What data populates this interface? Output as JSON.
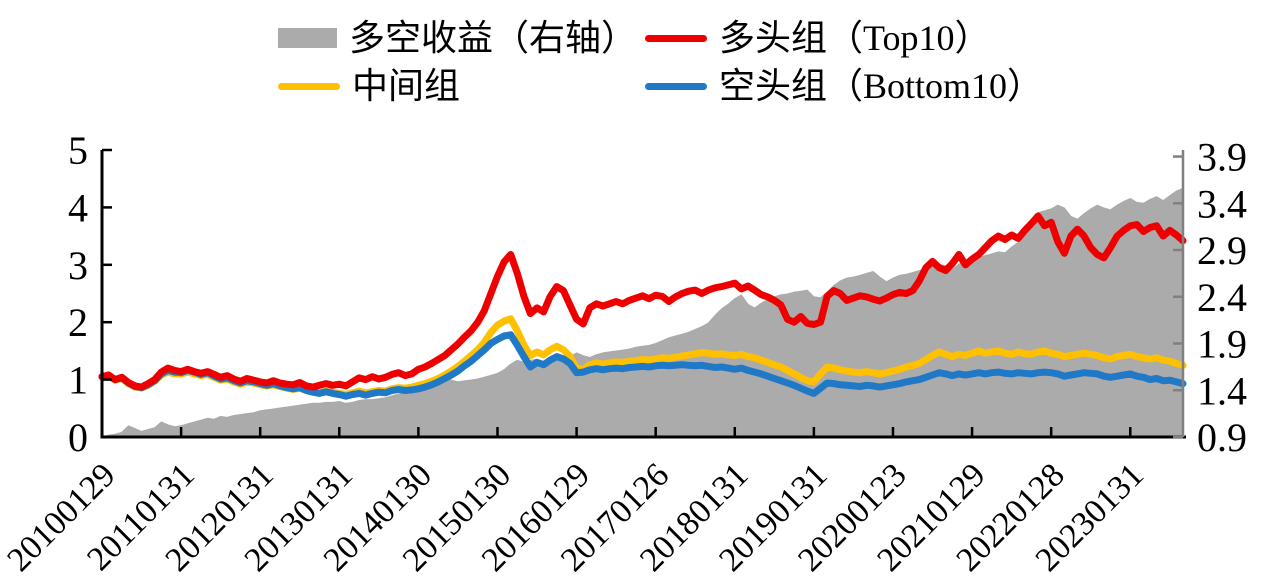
{
  "figure": {
    "background": "#FFFFFF"
  },
  "legend": {
    "items": [
      {
        "label": "多空收益（右轴）",
        "swatch": "area",
        "color": "#ABABAB"
      },
      {
        "label": "多头组（Top10）",
        "swatch": "line",
        "color": "#EE0000"
      },
      {
        "label": "中间组",
        "swatch": "line",
        "color": "#FFC000"
      },
      {
        "label": "空头组（Bottom10）",
        "swatch": "line",
        "color": "#2079C7"
      }
    ]
  },
  "chart_data": {
    "type": "area+line",
    "title": "",
    "grid": "off",
    "legend_position": "top",
    "x_tick_labels": [
      "20100129",
      "20110131",
      "20120131",
      "20130131",
      "20140130",
      "20150130",
      "20160129",
      "20170126",
      "20180131",
      "20190131",
      "20200123",
      "20210129",
      "20220128",
      "20230131"
    ],
    "points_per_tick_interval": 12,
    "y_left": {
      "ticks": [
        0,
        1,
        2,
        3,
        4,
        5
      ],
      "range": [
        0,
        5
      ],
      "color": "#000000"
    },
    "y_right": {
      "ticks": [
        0.9,
        1.4,
        1.9,
        2.4,
        2.9,
        3.4,
        3.9
      ],
      "range": [
        0.9,
        3.97
      ],
      "color": "#808080"
    },
    "series": [
      {
        "name": "多空收益（右轴）",
        "axis": "right",
        "type": "area",
        "color": "#ABABAB",
        "values": [
          0.9,
          0.92,
          0.93,
          0.95,
          1.02,
          0.99,
          0.96,
          0.98,
          1.0,
          1.06,
          1.03,
          1.01,
          1.02,
          1.04,
          1.06,
          1.08,
          1.1,
          1.09,
          1.12,
          1.11,
          1.13,
          1.14,
          1.15,
          1.16,
          1.18,
          1.19,
          1.2,
          1.21,
          1.22,
          1.23,
          1.24,
          1.25,
          1.26,
          1.26,
          1.27,
          1.27,
          1.28,
          1.26,
          1.27,
          1.29,
          1.3,
          1.3,
          1.31,
          1.32,
          1.34,
          1.36,
          1.38,
          1.4,
          1.42,
          1.45,
          1.48,
          1.5,
          1.53,
          1.51,
          1.49,
          1.5,
          1.51,
          1.52,
          1.54,
          1.56,
          1.58,
          1.62,
          1.68,
          1.72,
          1.7,
          1.72,
          1.73,
          1.71,
          1.73,
          1.75,
          1.74,
          1.76,
          1.8,
          1.77,
          1.75,
          1.78,
          1.8,
          1.81,
          1.82,
          1.83,
          1.84,
          1.86,
          1.87,
          1.88,
          1.9,
          1.93,
          1.96,
          1.98,
          2.0,
          2.02,
          2.05,
          2.08,
          2.12,
          2.2,
          2.27,
          2.32,
          2.38,
          2.42,
          2.32,
          2.28,
          2.33,
          2.37,
          2.4,
          2.42,
          2.43,
          2.45,
          2.46,
          2.47,
          2.4,
          2.39,
          2.45,
          2.52,
          2.57,
          2.6,
          2.61,
          2.63,
          2.65,
          2.67,
          2.61,
          2.56,
          2.6,
          2.63,
          2.64,
          2.66,
          2.68,
          2.7,
          2.72,
          2.75,
          2.73,
          2.69,
          2.75,
          2.78,
          2.8,
          2.82,
          2.84,
          2.86,
          2.88,
          2.87,
          2.93,
          2.98,
          3.05,
          3.17,
          3.3,
          3.32,
          3.34,
          3.38,
          3.35,
          3.26,
          3.23,
          3.29,
          3.34,
          3.38,
          3.35,
          3.33,
          3.38,
          3.42,
          3.45,
          3.41,
          3.4,
          3.44,
          3.47,
          3.43,
          3.48,
          3.53,
          3.56
        ]
      },
      {
        "name": "多头组（Top10）",
        "axis": "left",
        "type": "line",
        "color": "#EE0000",
        "values": [
          1.05,
          1.08,
          1.0,
          1.04,
          0.95,
          0.89,
          0.87,
          0.93,
          1.0,
          1.13,
          1.2,
          1.16,
          1.14,
          1.18,
          1.14,
          1.11,
          1.14,
          1.09,
          1.04,
          1.07,
          1.01,
          0.97,
          1.02,
          0.99,
          0.96,
          0.94,
          0.98,
          0.94,
          0.92,
          0.91,
          0.95,
          0.89,
          0.87,
          0.9,
          0.93,
          0.9,
          0.92,
          0.89,
          0.96,
          1.03,
          1.0,
          1.05,
          1.01,
          1.04,
          1.09,
          1.12,
          1.07,
          1.1,
          1.18,
          1.22,
          1.28,
          1.35,
          1.42,
          1.52,
          1.62,
          1.74,
          1.85,
          2.0,
          2.2,
          2.5,
          2.8,
          3.05,
          3.18,
          2.85,
          2.45,
          2.15,
          2.25,
          2.18,
          2.45,
          2.62,
          2.55,
          2.3,
          2.05,
          1.97,
          2.25,
          2.32,
          2.28,
          2.32,
          2.36,
          2.32,
          2.38,
          2.42,
          2.46,
          2.41,
          2.47,
          2.45,
          2.36,
          2.44,
          2.5,
          2.54,
          2.56,
          2.5,
          2.56,
          2.6,
          2.62,
          2.65,
          2.68,
          2.58,
          2.63,
          2.56,
          2.48,
          2.44,
          2.38,
          2.3,
          2.05,
          2.0,
          2.1,
          1.98,
          1.96,
          2.0,
          2.45,
          2.55,
          2.5,
          2.38,
          2.42,
          2.46,
          2.44,
          2.4,
          2.37,
          2.42,
          2.48,
          2.52,
          2.5,
          2.55,
          2.72,
          2.95,
          3.06,
          2.95,
          2.9,
          3.02,
          3.18,
          3.0,
          3.1,
          3.18,
          3.3,
          3.42,
          3.5,
          3.44,
          3.52,
          3.46,
          3.6,
          3.72,
          3.85,
          3.68,
          3.74,
          3.4,
          3.2,
          3.5,
          3.62,
          3.5,
          3.3,
          3.18,
          3.12,
          3.3,
          3.5,
          3.6,
          3.68,
          3.7,
          3.58,
          3.65,
          3.68,
          3.5,
          3.6,
          3.52,
          3.42
        ]
      },
      {
        "name": "中间组",
        "axis": "left",
        "type": "line",
        "color": "#FFC000",
        "values": [
          1.05,
          1.07,
          0.99,
          1.02,
          0.93,
          0.87,
          0.85,
          0.9,
          0.97,
          1.08,
          1.13,
          1.1,
          1.1,
          1.13,
          1.1,
          1.07,
          1.09,
          1.04,
          0.99,
          1.01,
          0.96,
          0.92,
          0.96,
          0.94,
          0.91,
          0.89,
          0.91,
          0.88,
          0.85,
          0.83,
          0.85,
          0.81,
          0.79,
          0.77,
          0.8,
          0.78,
          0.76,
          0.74,
          0.77,
          0.8,
          0.77,
          0.79,
          0.81,
          0.8,
          0.84,
          0.86,
          0.85,
          0.87,
          0.9,
          0.93,
          0.97,
          1.02,
          1.08,
          1.15,
          1.23,
          1.32,
          1.42,
          1.52,
          1.65,
          1.82,
          1.95,
          2.02,
          2.06,
          1.85,
          1.6,
          1.42,
          1.48,
          1.43,
          1.52,
          1.58,
          1.52,
          1.4,
          1.2,
          1.17,
          1.26,
          1.29,
          1.27,
          1.29,
          1.31,
          1.3,
          1.32,
          1.33,
          1.35,
          1.34,
          1.36,
          1.38,
          1.37,
          1.39,
          1.41,
          1.43,
          1.45,
          1.47,
          1.46,
          1.44,
          1.45,
          1.43,
          1.42,
          1.44,
          1.4,
          1.38,
          1.34,
          1.3,
          1.26,
          1.22,
          1.16,
          1.1,
          1.04,
          0.98,
          0.96,
          1.1,
          1.22,
          1.2,
          1.17,
          1.15,
          1.13,
          1.12,
          1.14,
          1.12,
          1.1,
          1.12,
          1.15,
          1.18,
          1.22,
          1.25,
          1.28,
          1.35,
          1.42,
          1.48,
          1.44,
          1.4,
          1.44,
          1.42,
          1.46,
          1.5,
          1.46,
          1.48,
          1.5,
          1.46,
          1.44,
          1.48,
          1.45,
          1.44,
          1.48,
          1.5,
          1.46,
          1.44,
          1.4,
          1.42,
          1.44,
          1.46,
          1.44,
          1.42,
          1.38,
          1.36,
          1.4,
          1.42,
          1.44,
          1.4,
          1.38,
          1.36,
          1.38,
          1.34,
          1.32,
          1.28,
          1.25
        ]
      },
      {
        "name": "空头组（Bottom10）",
        "axis": "left",
        "type": "line",
        "color": "#2079C7",
        "values": [
          1.05,
          1.07,
          1.0,
          1.03,
          0.94,
          0.88,
          0.86,
          0.91,
          0.98,
          1.1,
          1.16,
          1.13,
          1.12,
          1.16,
          1.13,
          1.09,
          1.12,
          1.06,
          1.01,
          1.03,
          0.98,
          0.94,
          0.98,
          0.96,
          0.93,
          0.9,
          0.93,
          0.89,
          0.86,
          0.84,
          0.86,
          0.81,
          0.78,
          0.76,
          0.79,
          0.76,
          0.74,
          0.71,
          0.74,
          0.76,
          0.73,
          0.76,
          0.78,
          0.77,
          0.81,
          0.83,
          0.81,
          0.82,
          0.84,
          0.87,
          0.91,
          0.96,
          1.02,
          1.08,
          1.15,
          1.24,
          1.32,
          1.42,
          1.52,
          1.63,
          1.7,
          1.76,
          1.78,
          1.6,
          1.4,
          1.22,
          1.3,
          1.26,
          1.34,
          1.4,
          1.36,
          1.28,
          1.12,
          1.13,
          1.17,
          1.19,
          1.17,
          1.19,
          1.2,
          1.19,
          1.21,
          1.22,
          1.23,
          1.22,
          1.24,
          1.25,
          1.24,
          1.25,
          1.26,
          1.25,
          1.24,
          1.25,
          1.23,
          1.21,
          1.22,
          1.2,
          1.18,
          1.2,
          1.16,
          1.13,
          1.1,
          1.06,
          1.02,
          0.98,
          0.94,
          0.9,
          0.85,
          0.8,
          0.76,
          0.85,
          0.94,
          0.93,
          0.91,
          0.9,
          0.89,
          0.88,
          0.9,
          0.89,
          0.87,
          0.89,
          0.91,
          0.93,
          0.96,
          0.98,
          1.0,
          1.04,
          1.08,
          1.12,
          1.1,
          1.07,
          1.1,
          1.08,
          1.1,
          1.12,
          1.1,
          1.12,
          1.13,
          1.11,
          1.1,
          1.12,
          1.11,
          1.1,
          1.12,
          1.13,
          1.12,
          1.1,
          1.06,
          1.08,
          1.1,
          1.12,
          1.11,
          1.1,
          1.06,
          1.04,
          1.06,
          1.08,
          1.1,
          1.06,
          1.04,
          1.0,
          1.02,
          0.98,
          0.99,
          0.96,
          0.93
        ]
      }
    ]
  }
}
